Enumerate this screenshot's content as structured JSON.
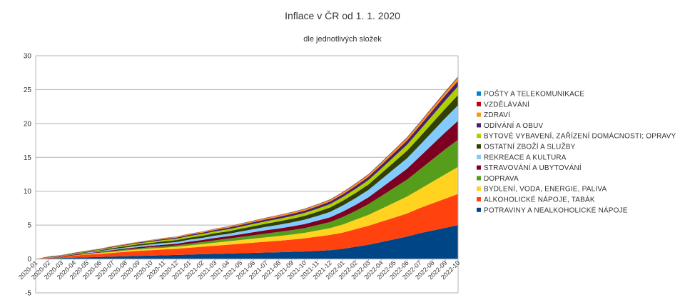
{
  "chart_data": {
    "type": "area",
    "stacked": true,
    "title": "Inflace v ČR od 1. 1. 2020",
    "subtitle": "dle jednotlivých složek",
    "xlabel": "",
    "ylabel": "",
    "ylim": [
      -5,
      30
    ],
    "yticks": [
      -5,
      0,
      5,
      10,
      15,
      20,
      25,
      30
    ],
    "grid": true,
    "legend_position": "right",
    "categories": [
      "2020-01",
      "2020-02",
      "2020-03",
      "2020-04",
      "2020-05",
      "2020-06",
      "2020-07",
      "2020-08",
      "2020-09",
      "2020-10",
      "2020-11",
      "2020-12",
      "2021-01",
      "2021-02",
      "2021-03",
      "2021-04",
      "2021-05",
      "2021-06",
      "2021-07",
      "2021-08",
      "2021-09",
      "2021-10",
      "2021-11",
      "2021-12",
      "2022-01",
      "2022-02",
      "2022-03",
      "2022-04",
      "2022-05",
      "2022-06",
      "2022-07",
      "2022-08",
      "2022-09",
      "2022-10"
    ],
    "series": [
      {
        "name": "POTRAVINY A NEALKOHOLICKÉ NÁPOJE",
        "color": "#004586",
        "values": [
          0,
          0.1,
          0.15,
          0.2,
          0.25,
          0.3,
          0.35,
          0.4,
          0.45,
          0.5,
          0.55,
          0.6,
          0.65,
          0.7,
          0.75,
          0.8,
          0.85,
          0.9,
          0.95,
          1.0,
          1.05,
          1.1,
          1.2,
          1.3,
          1.5,
          1.8,
          2.1,
          2.5,
          2.9,
          3.3,
          3.8,
          4.2,
          4.6,
          5.0
        ]
      },
      {
        "name": "ALKOHOLICKÉ NÁPOJE, TABÁK",
        "color": "#ff420e",
        "values": [
          0,
          0.1,
          0.2,
          0.3,
          0.4,
          0.45,
          0.55,
          0.65,
          0.75,
          0.8,
          0.85,
          0.9,
          1.0,
          1.1,
          1.2,
          1.3,
          1.4,
          1.5,
          1.6,
          1.7,
          1.8,
          1.95,
          2.1,
          2.25,
          2.4,
          2.6,
          2.8,
          3.0,
          3.2,
          3.4,
          3.7,
          4.0,
          4.3,
          4.6
        ]
      },
      {
        "name": "BYDLENÍ, VODA, ENERGIE, PALIVA",
        "color": "#ffd320",
        "values": [
          0,
          0.05,
          0.05,
          0.1,
          0.1,
          0.15,
          0.15,
          0.2,
          0.2,
          0.25,
          0.25,
          0.3,
          0.35,
          0.4,
          0.45,
          0.5,
          0.55,
          0.6,
          0.65,
          0.7,
          0.75,
          0.8,
          0.9,
          1.0,
          1.2,
          1.4,
          1.6,
          1.9,
          2.2,
          2.5,
          2.8,
          3.2,
          3.6,
          4.0
        ]
      },
      {
        "name": "DOPRAVA",
        "color": "#579d1c",
        "values": [
          0,
          0.0,
          -0.05,
          -0.05,
          0.0,
          0.05,
          0.1,
          0.15,
          0.15,
          0.2,
          0.2,
          0.2,
          0.25,
          0.3,
          0.35,
          0.4,
          0.45,
          0.5,
          0.55,
          0.6,
          0.65,
          0.7,
          0.8,
          0.9,
          1.1,
          1.3,
          1.6,
          1.9,
          2.2,
          2.5,
          2.9,
          3.3,
          3.7,
          4.0
        ]
      },
      {
        "name": "STRAVOVÁNÍ A UBYTOVÁNÍ",
        "color": "#7e0021",
        "values": [
          0,
          0.05,
          0.05,
          0.1,
          0.1,
          0.1,
          0.15,
          0.15,
          0.2,
          0.2,
          0.25,
          0.25,
          0.3,
          0.3,
          0.35,
          0.35,
          0.4,
          0.45,
          0.5,
          0.5,
          0.55,
          0.6,
          0.65,
          0.7,
          0.8,
          0.9,
          1.0,
          1.2,
          1.4,
          1.6,
          1.9,
          2.2,
          2.5,
          2.8
        ]
      },
      {
        "name": "REKREACE A KULTURA",
        "color": "#83caff",
        "values": [
          0,
          0.0,
          0.05,
          0.05,
          0.1,
          0.1,
          0.15,
          0.15,
          0.2,
          0.2,
          0.25,
          0.25,
          0.3,
          0.3,
          0.35,
          0.35,
          0.4,
          0.45,
          0.5,
          0.55,
          0.6,
          0.65,
          0.7,
          0.8,
          0.9,
          1.0,
          1.1,
          1.25,
          1.4,
          1.55,
          1.7,
          1.9,
          2.1,
          2.3
        ]
      },
      {
        "name": "OSTATNÍ ZBOŽÍ A SLUŽBY",
        "color": "#314004",
        "values": [
          0,
          0.03,
          0.05,
          0.08,
          0.1,
          0.12,
          0.15,
          0.18,
          0.2,
          0.22,
          0.25,
          0.27,
          0.3,
          0.32,
          0.35,
          0.37,
          0.4,
          0.43,
          0.46,
          0.5,
          0.53,
          0.56,
          0.6,
          0.65,
          0.7,
          0.75,
          0.8,
          0.9,
          1.0,
          1.1,
          1.2,
          1.3,
          1.4,
          1.5
        ]
      },
      {
        "name": "BYTOVÉ VYBAVENÍ, ZAŘÍZENÍ DOMÁCNOSTI; OPRAVY",
        "color": "#aecf00",
        "values": [
          0,
          0.02,
          0.04,
          0.06,
          0.08,
          0.1,
          0.12,
          0.14,
          0.16,
          0.18,
          0.2,
          0.22,
          0.24,
          0.26,
          0.28,
          0.3,
          0.32,
          0.34,
          0.36,
          0.38,
          0.4,
          0.43,
          0.46,
          0.5,
          0.55,
          0.6,
          0.65,
          0.7,
          0.8,
          0.9,
          1.0,
          1.1,
          1.2,
          1.3
        ]
      },
      {
        "name": "ODÍVÁNÍ A OBUV",
        "color": "#4b1f6f",
        "values": [
          0,
          0.02,
          0.03,
          0.05,
          0.06,
          0.08,
          0.09,
          0.1,
          0.12,
          0.13,
          0.15,
          0.16,
          0.18,
          0.19,
          0.2,
          0.22,
          0.24,
          0.26,
          0.28,
          0.3,
          0.32,
          0.34,
          0.36,
          0.38,
          0.4,
          0.44,
          0.48,
          0.52,
          0.56,
          0.6,
          0.65,
          0.7,
          0.75,
          0.8
        ]
      },
      {
        "name": "ZDRAVÍ",
        "color": "#ff950e",
        "values": [
          0,
          0.01,
          0.02,
          0.03,
          0.04,
          0.05,
          0.06,
          0.07,
          0.08,
          0.09,
          0.1,
          0.11,
          0.12,
          0.13,
          0.14,
          0.15,
          0.16,
          0.17,
          0.18,
          0.19,
          0.2,
          0.21,
          0.22,
          0.23,
          0.25,
          0.27,
          0.29,
          0.31,
          0.33,
          0.35,
          0.38,
          0.41,
          0.44,
          0.47
        ]
      },
      {
        "name": "VZDĚLÁVÁNÍ",
        "color": "#c5000b",
        "values": [
          0,
          0.0,
          0.0,
          0.01,
          0.01,
          0.01,
          0.02,
          0.02,
          0.02,
          0.02,
          0.03,
          0.03,
          0.03,
          0.03,
          0.04,
          0.04,
          0.04,
          0.04,
          0.05,
          0.05,
          0.05,
          0.05,
          0.06,
          0.06,
          0.06,
          0.07,
          0.07,
          0.08,
          0.08,
          0.09,
          0.09,
          0.1,
          0.1,
          0.11
        ]
      },
      {
        "name": "POŠTY A TELEKOMUNIKACE",
        "color": "#0084d1",
        "values": [
          0,
          0.0,
          0.0,
          0.0,
          0.01,
          0.01,
          0.01,
          0.01,
          0.01,
          0.02,
          0.02,
          0.02,
          0.02,
          0.02,
          0.02,
          0.03,
          0.03,
          0.03,
          0.03,
          0.03,
          0.03,
          0.04,
          0.04,
          0.04,
          0.04,
          0.05,
          0.05,
          0.05,
          0.05,
          0.06,
          0.06,
          0.06,
          0.07,
          0.07
        ]
      }
    ]
  }
}
